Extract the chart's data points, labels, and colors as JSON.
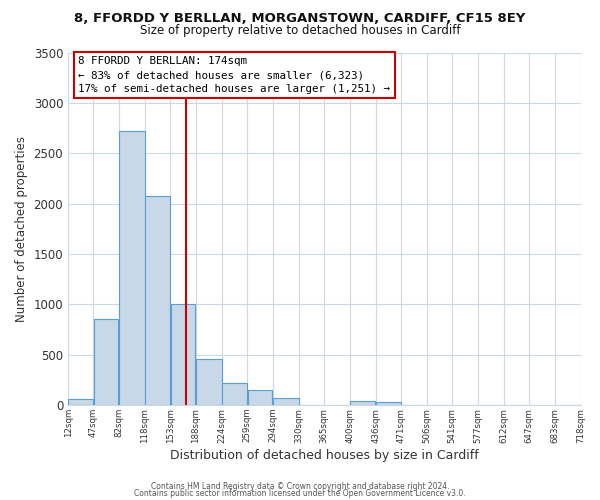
{
  "title1": "8, FFORDD Y BERLLAN, MORGANSTOWN, CARDIFF, CF15 8EY",
  "title2": "Size of property relative to detached houses in Cardiff",
  "xlabel": "Distribution of detached houses by size in Cardiff",
  "ylabel": "Number of detached properties",
  "bar_edges": [
    12,
    47,
    82,
    118,
    153,
    188,
    224,
    259,
    294,
    330,
    365,
    400,
    436,
    471,
    506,
    541,
    577,
    612,
    647,
    683,
    718
  ],
  "bar_values": [
    55,
    850,
    2720,
    2070,
    1005,
    455,
    215,
    145,
    65,
    0,
    0,
    40,
    25,
    0,
    0,
    0,
    0,
    0,
    0,
    0
  ],
  "property_size": 174,
  "annotation_title": "8 FFORDD Y BERLLAN: 174sqm",
  "annotation_line1": "← 83% of detached houses are smaller (6,323)",
  "annotation_line2": "17% of semi-detached houses are larger (1,251) →",
  "bar_color": "#c8d8e8",
  "bar_edge_color": "#5a9fd4",
  "vline_color": "#cc0000",
  "annotation_box_edge": "#cc0000",
  "background_color": "#ffffff",
  "grid_color": "#ccd8e4",
  "footer1": "Contains HM Land Registry data © Crown copyright and database right 2024.",
  "footer2": "Contains public sector information licensed under the Open Government Licence v3.0.",
  "ylim": [
    0,
    3500
  ],
  "yticks": [
    0,
    500,
    1000,
    1500,
    2000,
    2500,
    3000,
    3500
  ],
  "tick_labels": [
    "12sqm",
    "47sqm",
    "82sqm",
    "118sqm",
    "153sqm",
    "188sqm",
    "224sqm",
    "259sqm",
    "294sqm",
    "330sqm",
    "365sqm",
    "400sqm",
    "436sqm",
    "471sqm",
    "506sqm",
    "541sqm",
    "577sqm",
    "612sqm",
    "647sqm",
    "683sqm",
    "718sqm"
  ]
}
